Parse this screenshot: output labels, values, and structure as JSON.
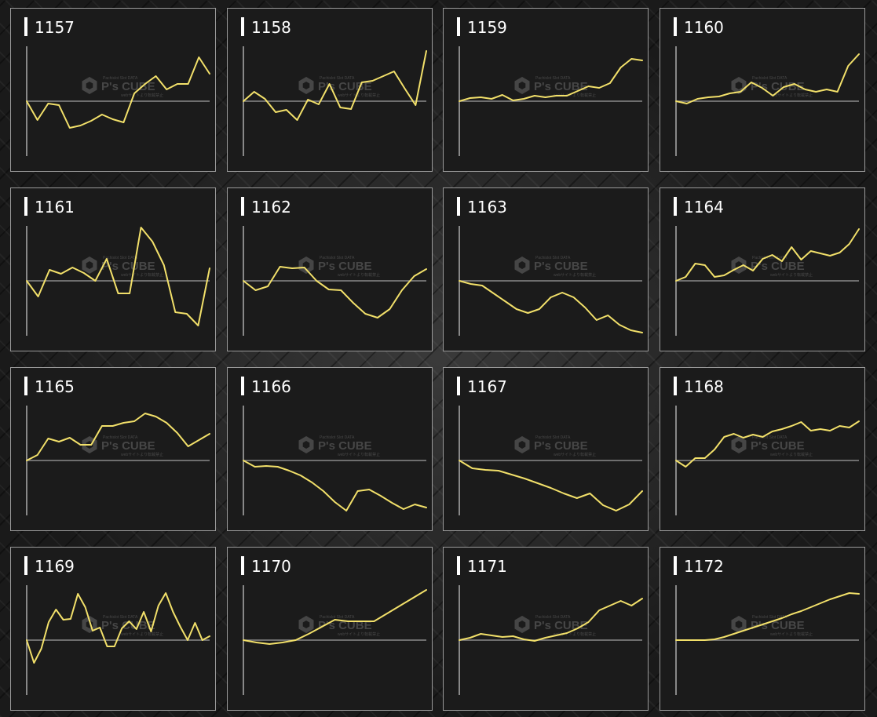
{
  "colors": {
    "line": "#f2e06a",
    "axis": "#d0d0d0",
    "baseline": "#8a8a8a",
    "watermark": "#6a6a6a"
  },
  "watermark": {
    "brand": "P's CUBE",
    "line1": "Pachislot Slot DATA",
    "line2": "webサイトより転載禁止",
    "icon": "cube-logo-icon"
  },
  "chart_data": [
    {
      "type": "line",
      "title": "1157",
      "y": [
        0,
        -24,
        -3,
        -5,
        -34,
        -31,
        -25,
        -17,
        -23,
        -27,
        10,
        22,
        32,
        15,
        22,
        22,
        56,
        35
      ]
    },
    {
      "type": "line",
      "title": "1158",
      "y": [
        0,
        12,
        3,
        -14,
        -11,
        -24,
        2,
        -4,
        22,
        -8,
        -10,
        24,
        26,
        32,
        38,
        16,
        -5,
        64
      ]
    },
    {
      "type": "line",
      "title": "1159",
      "y": [
        0,
        4,
        5,
        3,
        8,
        1,
        3,
        7,
        5,
        7,
        7,
        13,
        19,
        17,
        23,
        43,
        54,
        52
      ]
    },
    {
      "type": "line",
      "title": "1160",
      "y": [
        0,
        -3,
        3,
        5,
        6,
        10,
        12,
        24,
        17,
        7,
        18,
        22,
        15,
        12,
        15,
        12,
        45,
        60
      ]
    },
    {
      "type": "line",
      "title": "1161",
      "y": [
        0,
        -20,
        14,
        9,
        17,
        10,
        0,
        28,
        -16,
        -16,
        68,
        50,
        20,
        -40,
        -42,
        -57,
        16
      ]
    },
    {
      "type": "line",
      "title": "1162",
      "y": [
        0,
        -12,
        -7,
        18,
        16,
        17,
        0,
        -11,
        -12,
        -28,
        -42,
        -47,
        -36,
        -12,
        6,
        15
      ]
    },
    {
      "type": "line",
      "title": "1163",
      "y": [
        0,
        -4,
        -6,
        -16,
        -26,
        -36,
        -41,
        -36,
        -21,
        -15,
        -21,
        -34,
        -50,
        -44,
        -56,
        -63,
        -66
      ]
    },
    {
      "type": "line",
      "title": "1164",
      "y": [
        0,
        5,
        22,
        20,
        5,
        7,
        14,
        20,
        13,
        28,
        33,
        25,
        43,
        27,
        38,
        35,
        32,
        36,
        47,
        66
      ]
    },
    {
      "type": "line",
      "title": "1165",
      "y": [
        0,
        7,
        28,
        24,
        29,
        20,
        20,
        44,
        44,
        48,
        50,
        60,
        56,
        48,
        35,
        18,
        26,
        34
      ]
    },
    {
      "type": "line",
      "title": "1166",
      "y": [
        0,
        -8,
        -7,
        -8,
        -13,
        -19,
        -28,
        -39,
        -53,
        -64,
        -39,
        -37,
        -45,
        -54,
        -62,
        -56,
        -60
      ]
    },
    {
      "type": "line",
      "title": "1167",
      "y": [
        0,
        -10,
        -12,
        -13,
        -18,
        -23,
        -29,
        -35,
        -42,
        -48,
        -42,
        -57,
        -64,
        -56,
        -39
      ]
    },
    {
      "type": "line",
      "title": "1168",
      "y": [
        0,
        -8,
        3,
        3,
        14,
        30,
        34,
        29,
        33,
        30,
        37,
        40,
        44,
        49,
        38,
        40,
        38,
        44,
        42,
        50
      ]
    },
    {
      "type": "line",
      "title": "1169",
      "y": [
        0,
        -29,
        -11,
        23,
        39,
        26,
        27,
        59,
        42,
        12,
        16,
        -8,
        -8,
        15,
        24,
        14,
        36,
        11,
        44,
        60,
        36,
        17,
        0,
        22,
        0,
        5
      ]
    },
    {
      "type": "line",
      "title": "1170",
      "y": [
        0,
        -3,
        -5,
        -3,
        0,
        8,
        17,
        26,
        24,
        24,
        24,
        34,
        44,
        54,
        64
      ]
    },
    {
      "type": "line",
      "title": "1171",
      "y": [
        0,
        3,
        8,
        6,
        4,
        5,
        1,
        -1,
        3,
        6,
        9,
        15,
        23,
        38,
        44,
        50,
        44,
        53
      ]
    },
    {
      "type": "line",
      "title": "1172",
      "y": [
        0,
        0,
        0,
        0,
        1,
        4,
        8,
        12,
        16,
        20,
        24,
        28,
        33,
        37,
        42,
        47,
        52,
        56,
        60,
        59
      ]
    }
  ]
}
